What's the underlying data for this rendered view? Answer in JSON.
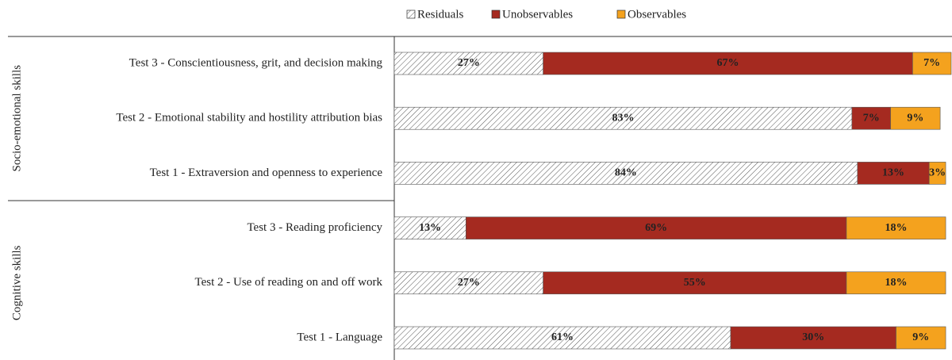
{
  "chart_data": {
    "type": "bar",
    "orientation": "horizontal",
    "stacked": true,
    "groups": [
      {
        "name": "Socio-emotional skills",
        "categories": [
          "Test 3 - Conscientiousness, grit, and decision making",
          "Test 2 - Emotional stability and hostility attribution bias",
          "Test 1 - Extraversion and openness to experience"
        ]
      },
      {
        "name": "Cognitive skills",
        "categories": [
          "Test 3 - Reading proficiency",
          "Test 2 - Use of reading on and off work",
          "Test 1 - Language"
        ]
      }
    ],
    "series": [
      {
        "name": "Residuals",
        "color": "#ffffff",
        "pattern": "hatch",
        "values": [
          27,
          83,
          84,
          13,
          27,
          61
        ],
        "value_labels": [
          "27%",
          "83%",
          "84%",
          "13%",
          "27%",
          "61%"
        ]
      },
      {
        "name": "Unobservables",
        "color": "#a52a20",
        "values": [
          67,
          7,
          13,
          69,
          55,
          30
        ],
        "value_labels": [
          "67%",
          "7%",
          "13%",
          "69%",
          "55%",
          "30%"
        ]
      },
      {
        "name": "Observables",
        "color": "#f4a21e",
        "values": [
          7,
          9,
          3,
          18,
          18,
          9
        ],
        "value_labels": [
          "7%",
          "9%",
          "3%",
          "18%",
          "18%",
          "9%"
        ]
      }
    ],
    "legend": "top"
  }
}
